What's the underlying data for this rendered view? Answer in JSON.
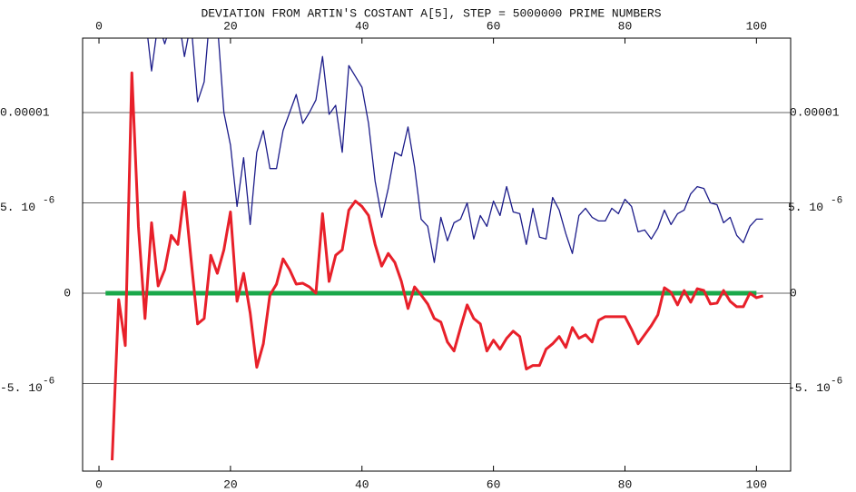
{
  "chart_data": {
    "type": "line",
    "title": "DEVIATION FROM ARTIN'S COSTANT A[5], STEP = 5000000 PRIME NUMBERS",
    "xlim": [
      -2.49,
      105.2
    ],
    "ylim": [
      -9.85e-06,
      1.412e-05
    ],
    "xticks": [
      0,
      20,
      40,
      60,
      80,
      100
    ],
    "yticks": [
      {
        "value": -5e-06,
        "label": "-5. 10",
        "exponent": "-6"
      },
      0,
      {
        "value": 5e-06,
        "label": "5. 10",
        "exponent": "-6"
      },
      1e-05
    ],
    "grid": true,
    "series": [
      {
        "color": "#1c1c8a",
        "x": [
          7,
          8,
          9,
          10,
          11,
          12,
          13,
          14,
          15,
          16,
          17,
          18,
          19,
          20,
          21,
          22,
          23,
          24,
          25,
          26,
          27,
          28,
          29,
          30,
          31,
          32,
          33,
          34,
          35,
          36,
          37,
          38,
          39,
          40,
          41,
          42,
          43,
          44,
          45,
          46,
          47,
          48,
          49,
          50,
          51,
          52,
          53,
          54,
          55,
          56,
          57,
          58,
          59,
          60,
          61,
          62,
          63,
          64,
          65,
          66,
          67,
          68,
          69,
          70,
          71,
          72,
          73,
          74,
          75,
          76,
          77,
          78,
          79,
          80,
          81,
          82,
          83,
          84,
          85,
          86,
          87,
          88,
          89,
          90,
          91,
          92,
          93,
          94,
          95,
          96,
          97,
          98,
          99,
          100,
          101
        ],
        "values": [
          1.55e-05,
          1.23e-05,
          1.5e-05,
          1.38e-05,
          1.5e-05,
          1.55e-05,
          1.31e-05,
          1.5e-05,
          1.06e-05,
          1.17e-05,
          1.6e-05,
          1.5e-05,
          1e-05,
          8.2e-06,
          4.8e-06,
          7.5e-06,
          3.8e-06,
          7.8e-06,
          9e-06,
          6.9e-06,
          6.9e-06,
          9e-06,
          1e-05,
          1.1e-05,
          9.4e-06,
          1e-05,
          1.07e-05,
          1.31e-05,
          9.9e-06,
          1.04e-05,
          7.8e-06,
          1.26e-05,
          1.2e-05,
          1.14e-05,
          9.4e-06,
          6.2e-06,
          4.2e-06,
          5.8e-06,
          7.8e-06,
          7.6e-06,
          9.2e-06,
          7e-06,
          4.1e-06,
          3.7e-06,
          1.7e-06,
          4.2e-06,
          2.9e-06,
          3.9e-06,
          4.1e-06,
          5e-06,
          3e-06,
          4.3e-06,
          3.7e-06,
          5.1e-06,
          4.3e-06,
          5.9e-06,
          4.5e-06,
          4.4e-06,
          2.7e-06,
          4.7e-06,
          3.1e-06,
          3e-06,
          5.3e-06,
          4.6e-06,
          3.3e-06,
          2.2e-06,
          4.3e-06,
          4.7e-06,
          4.2e-06,
          4e-06,
          4e-06,
          4.7e-06,
          4.4e-06,
          5.2e-06,
          4.8e-06,
          3.4e-06,
          3.5e-06,
          3e-06,
          3.6e-06,
          4.6e-06,
          3.8e-06,
          4.4e-06,
          4.6e-06,
          5.5e-06,
          5.9e-06,
          5.8e-06,
          5e-06,
          4.9e-06,
          3.9e-06,
          4.2e-06,
          3.2e-06,
          2.8e-06,
          3.7e-06,
          4.1e-06,
          4.1e-06
        ],
        "width": 1.3
      },
      {
        "color": "#e8202a",
        "x": [
          2,
          3,
          4,
          5,
          6,
          7,
          8,
          9,
          10,
          11,
          12,
          13,
          14,
          15,
          16,
          17,
          18,
          19,
          20,
          21,
          22,
          23,
          24,
          25,
          26,
          27,
          28,
          29,
          30,
          31,
          32,
          33,
          34,
          35,
          36,
          37,
          38,
          39,
          40,
          41,
          42,
          43,
          44,
          45,
          46,
          47,
          48,
          49,
          50,
          51,
          52,
          53,
          54,
          55,
          56,
          57,
          58,
          59,
          60,
          61,
          62,
          63,
          64,
          65,
          66,
          67,
          68,
          69,
          70,
          71,
          72,
          73,
          74,
          75,
          76,
          77,
          78,
          79,
          80,
          81,
          82,
          83,
          84,
          85,
          86,
          87,
          88,
          89,
          90,
          91,
          92,
          93,
          94,
          95,
          96,
          97,
          98,
          99,
          100,
          101
        ],
        "values": [
          -9.25e-06,
          -3.5e-07,
          -2.9e-06,
          1.22e-05,
          3.7e-06,
          -1.4e-06,
          3.9e-06,
          4e-07,
          1.3e-06,
          3.2e-06,
          2.7e-06,
          5.6e-06,
          1.9e-06,
          -1.7e-06,
          -1.4e-06,
          2.1e-06,
          1.1e-06,
          2.4e-06,
          4.5e-06,
          -4.5e-07,
          1.1e-06,
          -1.1e-06,
          -4.1e-06,
          -2.8e-06,
          -1e-07,
          5e-07,
          1.9e-06,
          1.3e-06,
          5e-07,
          5.5e-07,
          3.5e-07,
          0,
          4.4e-06,
          6.5e-07,
          2.1e-06,
          2.4e-06,
          4.6e-06,
          5.1e-06,
          4.8e-06,
          4.3e-06,
          2.7e-06,
          1.5e-06,
          2.2e-06,
          1.7e-06,
          6.5e-07,
          -8.5e-07,
          3.5e-07,
          -1e-07,
          -6e-07,
          -1.4e-06,
          -1.6e-06,
          -2.7e-06,
          -3.2e-06,
          -1.9e-06,
          -6.5e-07,
          -1.4e-06,
          -1.7e-06,
          -3.2e-06,
          -2.6e-06,
          -3.1e-06,
          -2.5e-06,
          -2.1e-06,
          -2.4e-06,
          -4.2e-06,
          -4e-06,
          -4e-06,
          -3.1e-06,
          -2.8e-06,
          -2.4e-06,
          -3e-06,
          -1.9e-06,
          -2.5e-06,
          -2.3e-06,
          -2.7e-06,
          -1.5e-06,
          -1.3e-06,
          -1.3e-06,
          -1.3e-06,
          -1.3e-06,
          -2e-06,
          -2.8e-06,
          -2.3e-06,
          -1.8e-06,
          -1.2e-06,
          3e-07,
          5e-08,
          -6.5e-07,
          1.5e-07,
          -5e-07,
          2.5e-07,
          1.5e-07,
          -6e-07,
          -5.5e-07,
          1.5e-07,
          -4.5e-07,
          -7.5e-07,
          -7.5e-07,
          0,
          -2.5e-07,
          -1.5e-07
        ],
        "width": 3
      },
      {
        "color": "#1aa84a",
        "x": [
          1,
          100
        ],
        "values": [
          0,
          0
        ],
        "width": 5
      }
    ]
  }
}
